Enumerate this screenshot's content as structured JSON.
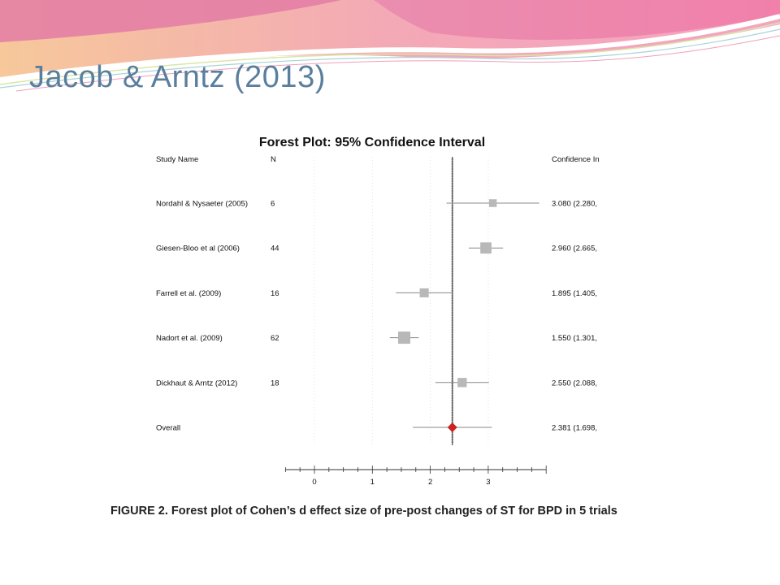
{
  "slide": {
    "title": "Jacob & Arntz (2013)"
  },
  "figure": {
    "caption": "FIGURE 2. Forest plot of Cohen’s d effect size of pre-post changes of ST for BPD in 5 trials"
  },
  "chart_data": {
    "type": "forest",
    "title": "Forest Plot: 95% Confidence Interval",
    "columns": {
      "study": "Study Name",
      "n": "N",
      "ci": "Confidence In"
    },
    "studies": [
      {
        "name": "Nordahl & Nysaeter (2005)",
        "n": "6",
        "d": 3.08,
        "lower": 2.28,
        "upper": 3.88,
        "ci_text": "3.080 (2.280,"
      },
      {
        "name": "Giesen-Bloo et al (2006)",
        "n": "44",
        "d": 2.96,
        "lower": 2.665,
        "upper": 3.255,
        "ci_text": "2.960 (2.665,"
      },
      {
        "name": "Farrell et al. (2009)",
        "n": "16",
        "d": 1.895,
        "lower": 1.405,
        "upper": 2.385,
        "ci_text": "1.895 (1.405,"
      },
      {
        "name": "Nadort et al.  (2009)",
        "n": "62",
        "d": 1.55,
        "lower": 1.301,
        "upper": 1.799,
        "ci_text": "1.550 (1.301,"
      },
      {
        "name": "Dickhaut & Arntz (2012)",
        "n": "18",
        "d": 2.55,
        "lower": 2.088,
        "upper": 3.012,
        "ci_text": "2.550 (2.088,"
      }
    ],
    "overall": {
      "name": "Overall",
      "d": 2.381,
      "lower": 1.698,
      "upper": 3.064,
      "ci_text": "2.381 (1.698,"
    },
    "x_ticks": [
      "0",
      "1",
      "2",
      "3"
    ],
    "xlim": [
      -0.5,
      4.0
    ],
    "reference_line": 2.381,
    "colors": {
      "study_marker": "#b8b8b8",
      "overall_marker": "#cc2222",
      "ci_line": "#888888"
    }
  }
}
